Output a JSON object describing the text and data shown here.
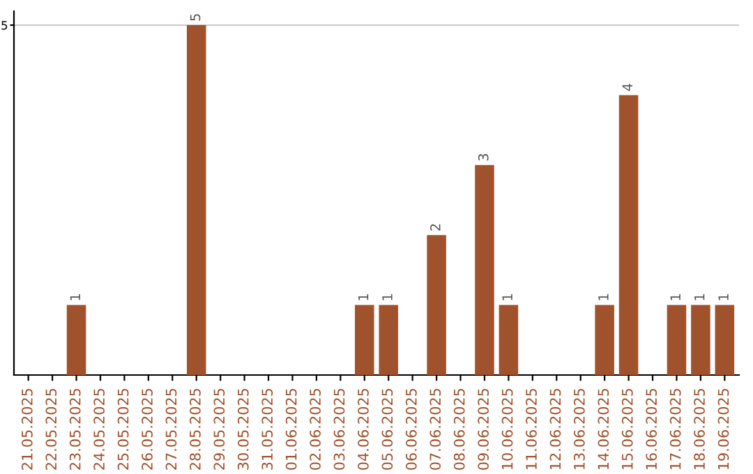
{
  "chart_data": {
    "type": "bar",
    "categories": [
      "21.05.2025",
      "22.05.2025",
      "23.05.2025",
      "24.05.2025",
      "25.05.2025",
      "26.05.2025",
      "27.05.2025",
      "28.05.2025",
      "29.05.2025",
      "30.05.2025",
      "31.05.2025",
      "01.06.2025",
      "02.06.2025",
      "03.06.2025",
      "04.06.2025",
      "05.06.2025",
      "06.06.2025",
      "07.06.2025",
      "08.06.2025",
      "09.06.2025",
      "10.06.2025",
      "11.06.2025",
      "12.06.2025",
      "13.06.2025",
      "14.06.2025",
      "15.06.2025",
      "16.06.2025",
      "17.06.2025",
      "18.06.2025",
      "19.06.2025"
    ],
    "series": [
      {
        "color": "#a0522d",
        "values": [
          0,
          0,
          1,
          0,
          0,
          0,
          0,
          5,
          0,
          0,
          0,
          0,
          0,
          0,
          1,
          1,
          0,
          2,
          0,
          3,
          1,
          0,
          0,
          0,
          1,
          4,
          0,
          1,
          1,
          1
        ],
        "value_labels": [
          null,
          null,
          "1",
          null,
          null,
          null,
          null,
          "5",
          null,
          null,
          null,
          null,
          null,
          null,
          "1",
          "1",
          null,
          "2",
          null,
          "3",
          "1",
          null,
          null,
          null,
          "1",
          "4",
          null,
          "1",
          "1",
          "1"
        ]
      }
    ],
    "ylim": [
      0,
      5.2
    ],
    "yticks": [
      5
    ],
    "grid": "y"
  }
}
